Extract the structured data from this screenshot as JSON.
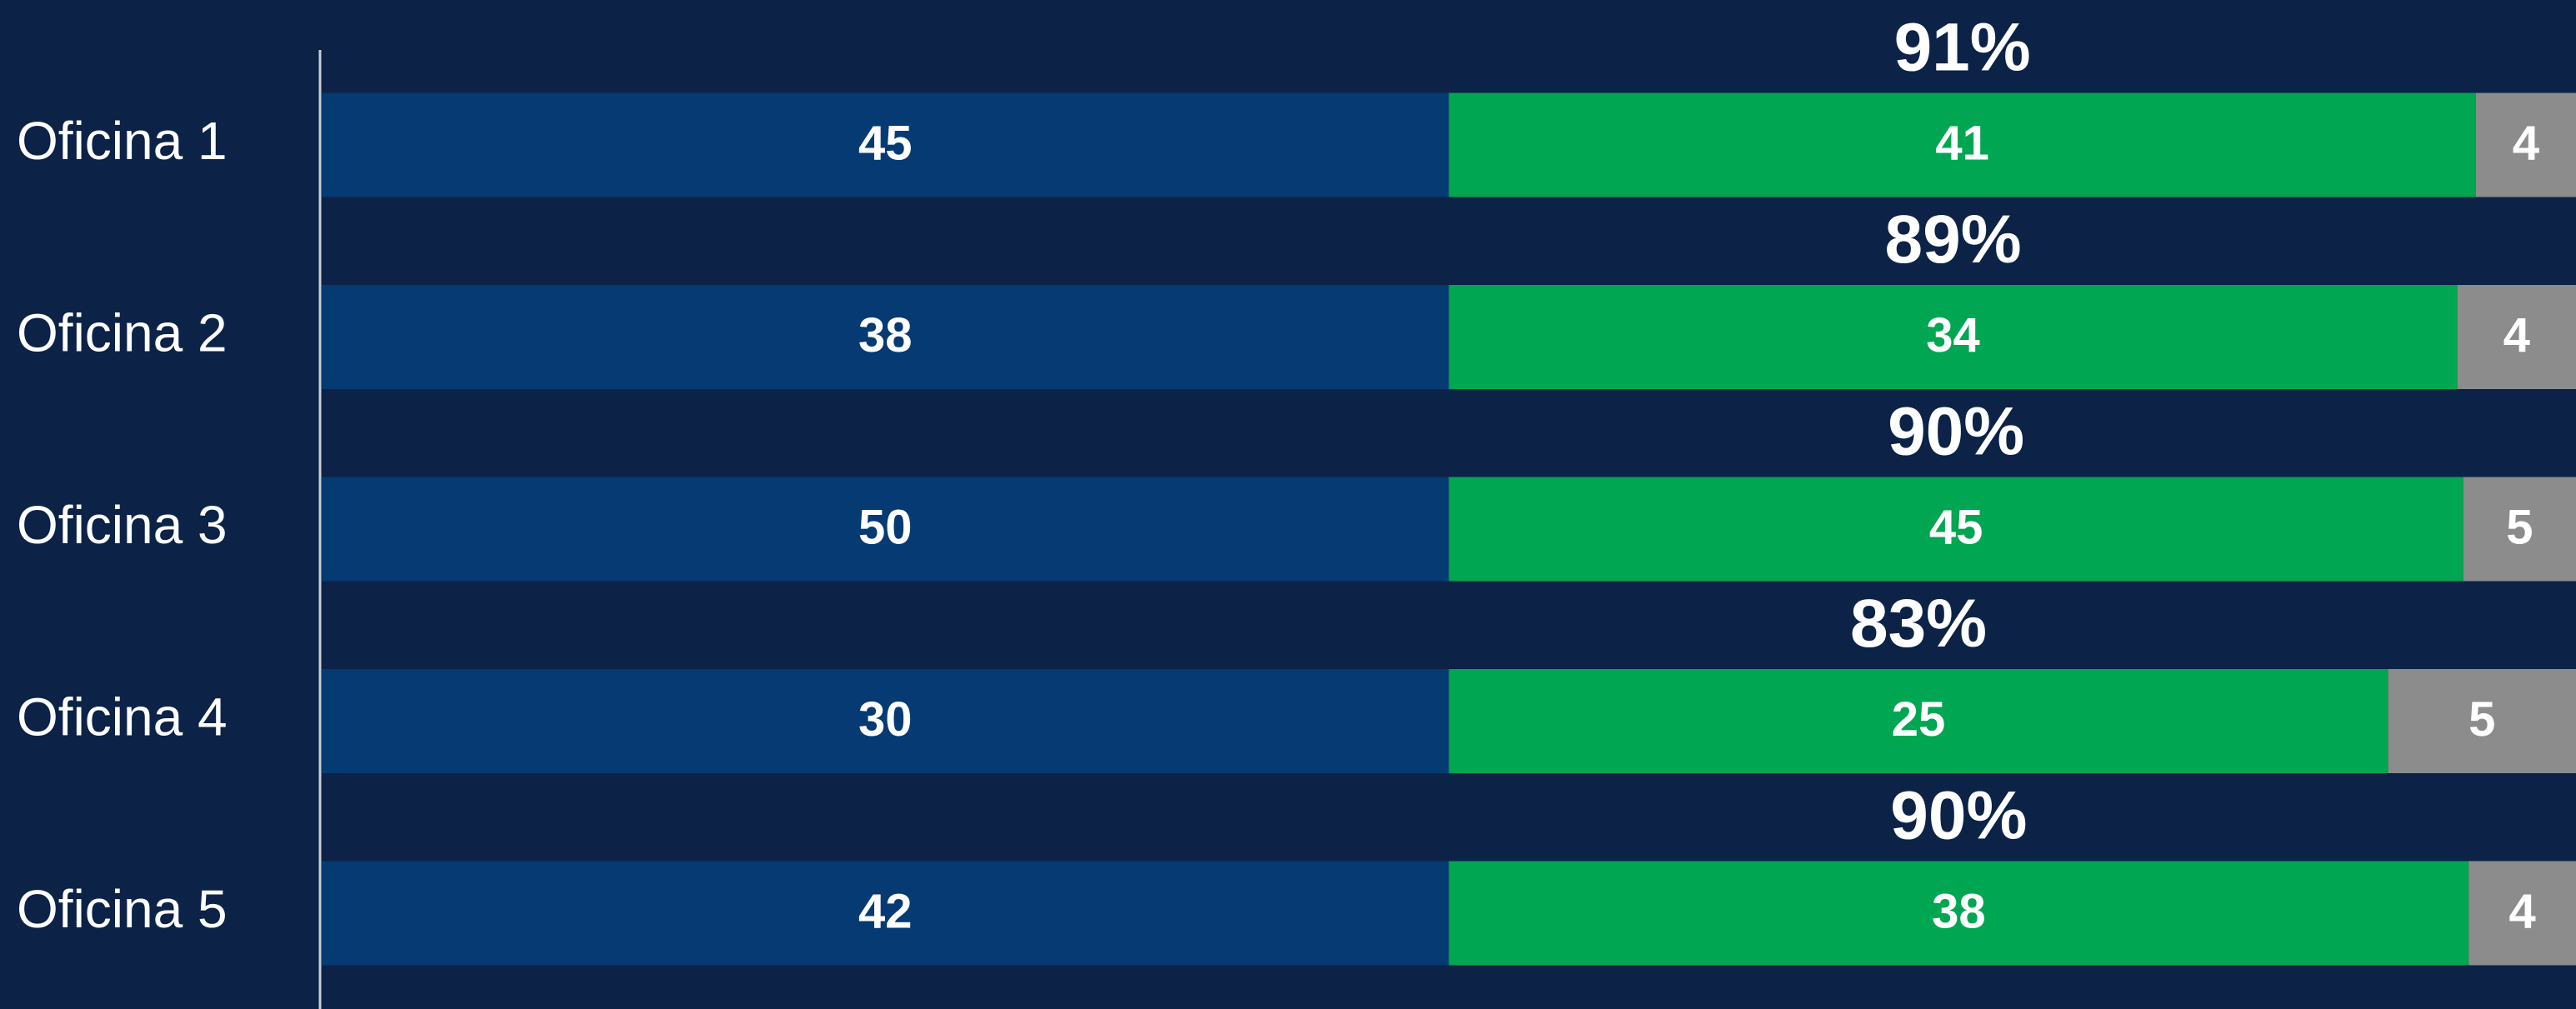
{
  "chart_data": {
    "type": "bar",
    "orientation": "horizontal",
    "stack": "percent",
    "categories": [
      "Oficina 1",
      "Oficina 2",
      "Oficina 3",
      "Oficina 4",
      "Oficina 5"
    ],
    "series": [
      {
        "color": "#053a72",
        "values": [
          45,
          38,
          50,
          30,
          42
        ]
      },
      {
        "color": "#00a651",
        "values": [
          41,
          34,
          45,
          25,
          38
        ]
      },
      {
        "color": "#8c8c8c",
        "values": [
          4,
          4,
          5,
          5,
          4
        ]
      }
    ],
    "rates": {
      "values": [
        91,
        89,
        90,
        83,
        90
      ],
      "value_labels": [
        "91%",
        "89%",
        "90%",
        "83%",
        "90%"
      ]
    }
  }
}
